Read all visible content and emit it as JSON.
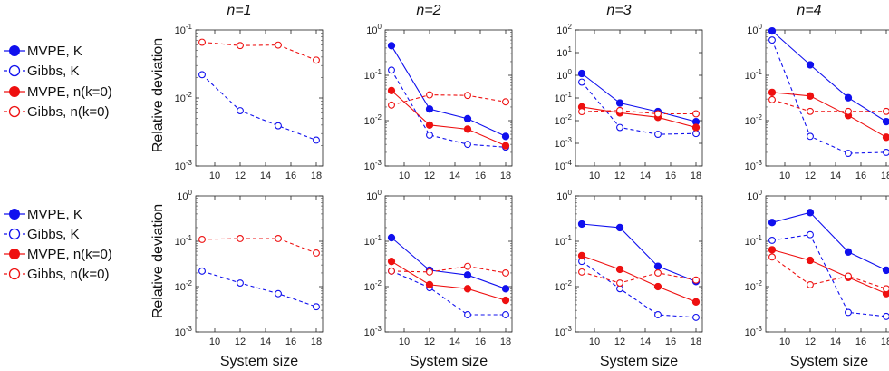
{
  "figure": {
    "column_titles": [
      "n=1",
      "n=2",
      "n=3",
      "n=4"
    ],
    "ylabel": "Relative deviation",
    "xlabel": "System size"
  },
  "legend": {
    "entries": [
      {
        "label": "MVPE, K",
        "color": "#1010ee",
        "filled": true,
        "dashed": false
      },
      {
        "label": "Gibbs, K",
        "color": "#1010ee",
        "filled": false,
        "dashed": true
      },
      {
        "label": "MVPE, n(k=0)",
        "color": "#ee1010",
        "filled": true,
        "dashed": false
      },
      {
        "label": "Gibbs, n(k=0)",
        "color": "#ee1010",
        "filled": false,
        "dashed": true
      }
    ]
  },
  "colors": {
    "blue": "#1010ee",
    "red": "#ee1010"
  },
  "chart_data": [
    {
      "type": "line",
      "row": 0,
      "col": 0,
      "title": "n=1",
      "xlabel": "",
      "ylabel": "Relative deviation",
      "yscale": "log",
      "xlim": [
        8.5,
        18.5
      ],
      "ylim_exp": [
        -3,
        -1
      ],
      "xticks": [
        10,
        12,
        14,
        16,
        18
      ],
      "series": [
        {
          "name": "Gibbs, K",
          "x": [
            9,
            12,
            15,
            18
          ],
          "y": [
            0.022,
            0.0065,
            0.0039,
            0.0024
          ]
        },
        {
          "name": "Gibbs, n(k=0)",
          "x": [
            9,
            12,
            15,
            18
          ],
          "y": [
            0.066,
            0.059,
            0.06,
            0.036
          ]
        }
      ]
    },
    {
      "type": "line",
      "row": 0,
      "col": 1,
      "title": "n=2",
      "xlabel": "",
      "ylabel": "",
      "yscale": "log",
      "xlim": [
        8.5,
        18.5
      ],
      "ylim_exp": [
        -3,
        0
      ],
      "xticks": [
        10,
        12,
        14,
        16,
        18
      ],
      "series": [
        {
          "name": "MVPE, K",
          "x": [
            9,
            12,
            15,
            18
          ],
          "y": [
            0.45,
            0.018,
            0.011,
            0.0045
          ]
        },
        {
          "name": "Gibbs, K",
          "x": [
            9,
            12,
            15,
            18
          ],
          "y": [
            0.13,
            0.0048,
            0.003,
            0.0026
          ]
        },
        {
          "name": "MVPE, n(k=0)",
          "x": [
            9,
            12,
            15,
            18
          ],
          "y": [
            0.046,
            0.008,
            0.0065,
            0.0028
          ]
        },
        {
          "name": "Gibbs, n(k=0)",
          "x": [
            9,
            12,
            15,
            18
          ],
          "y": [
            0.022,
            0.037,
            0.036,
            0.026
          ]
        }
      ]
    },
    {
      "type": "line",
      "row": 0,
      "col": 2,
      "title": "n=3",
      "xlabel": "",
      "ylabel": "",
      "yscale": "log",
      "xlim": [
        8.5,
        18.5
      ],
      "ylim_exp": [
        -4,
        2
      ],
      "xticks": [
        10,
        12,
        14,
        16,
        18
      ],
      "series": [
        {
          "name": "MVPE, K",
          "x": [
            9,
            12,
            15,
            18
          ],
          "y": [
            1.2,
            0.06,
            0.025,
            0.009
          ]
        },
        {
          "name": "Gibbs, K",
          "x": [
            9,
            12,
            15,
            18
          ],
          "y": [
            0.5,
            0.005,
            0.0025,
            0.0027
          ]
        },
        {
          "name": "MVPE, n(k=0)",
          "x": [
            9,
            12,
            15,
            18
          ],
          "y": [
            0.04,
            0.022,
            0.014,
            0.005
          ]
        },
        {
          "name": "Gibbs, n(k=0)",
          "x": [
            9,
            12,
            15,
            18
          ],
          "y": [
            0.025,
            0.028,
            0.02,
            0.02
          ]
        }
      ]
    },
    {
      "type": "line",
      "row": 0,
      "col": 3,
      "title": "n=4",
      "xlabel": "",
      "ylabel": "",
      "yscale": "log",
      "xlim": [
        8.5,
        18.5
      ],
      "ylim_exp": [
        -3,
        0
      ],
      "xticks": [
        10,
        12,
        14,
        16,
        18
      ],
      "series": [
        {
          "name": "MVPE, K",
          "x": [
            9,
            12,
            15,
            18
          ],
          "y": [
            0.95,
            0.17,
            0.032,
            0.0095
          ]
        },
        {
          "name": "Gibbs, K",
          "x": [
            9,
            12,
            15,
            18
          ],
          "y": [
            0.6,
            0.0045,
            0.0019,
            0.002
          ]
        },
        {
          "name": "MVPE, n(k=0)",
          "x": [
            9,
            12,
            15,
            18
          ],
          "y": [
            0.042,
            0.035,
            0.013,
            0.0043
          ]
        },
        {
          "name": "Gibbs, n(k=0)",
          "x": [
            9,
            12,
            15,
            18
          ],
          "y": [
            0.029,
            0.016,
            0.016,
            0.016
          ]
        }
      ]
    },
    {
      "type": "line",
      "row": 1,
      "col": 0,
      "title": "",
      "xlabel": "System size",
      "ylabel": "Relative deviation",
      "yscale": "log",
      "xlim": [
        8.5,
        18.5
      ],
      "ylim_exp": [
        -3,
        0
      ],
      "xticks": [
        10,
        12,
        14,
        16,
        18
      ],
      "series": [
        {
          "name": "Gibbs, K",
          "x": [
            9,
            12,
            15,
            18
          ],
          "y": [
            0.022,
            0.012,
            0.007,
            0.0036
          ]
        },
        {
          "name": "Gibbs, n(k=0)",
          "x": [
            9,
            12,
            15,
            18
          ],
          "y": [
            0.11,
            0.115,
            0.115,
            0.055
          ]
        }
      ]
    },
    {
      "type": "line",
      "row": 1,
      "col": 1,
      "title": "",
      "xlabel": "System size",
      "ylabel": "",
      "yscale": "log",
      "xlim": [
        8.5,
        18.5
      ],
      "ylim_exp": [
        -3,
        0
      ],
      "xticks": [
        10,
        12,
        14,
        16,
        18
      ],
      "series": [
        {
          "name": "MVPE, K",
          "x": [
            9,
            12,
            15,
            18
          ],
          "y": [
            0.12,
            0.023,
            0.018,
            0.009
          ]
        },
        {
          "name": "Gibbs, K",
          "x": [
            9,
            12,
            15,
            18
          ],
          "y": [
            0.022,
            0.0095,
            0.0024,
            0.0024
          ]
        },
        {
          "name": "MVPE, n(k=0)",
          "x": [
            9,
            12,
            15,
            18
          ],
          "y": [
            0.036,
            0.011,
            0.009,
            0.005
          ]
        },
        {
          "name": "Gibbs, n(k=0)",
          "x": [
            9,
            12,
            15,
            18
          ],
          "y": [
            0.022,
            0.021,
            0.028,
            0.02
          ]
        }
      ]
    },
    {
      "type": "line",
      "row": 1,
      "col": 2,
      "title": "",
      "xlabel": "System size",
      "ylabel": "",
      "yscale": "log",
      "xlim": [
        8.5,
        18.5
      ],
      "ylim_exp": [
        -3,
        0
      ],
      "xticks": [
        10,
        12,
        14,
        16,
        18
      ],
      "series": [
        {
          "name": "MVPE, K",
          "x": [
            9,
            12,
            15,
            18
          ],
          "y": [
            0.24,
            0.2,
            0.028,
            0.013
          ]
        },
        {
          "name": "Gibbs, K",
          "x": [
            9,
            12,
            15,
            18
          ],
          "y": [
            0.036,
            0.009,
            0.0024,
            0.0021
          ]
        },
        {
          "name": "MVPE, n(k=0)",
          "x": [
            9,
            12,
            15,
            18
          ],
          "y": [
            0.048,
            0.024,
            0.01,
            0.0046
          ]
        },
        {
          "name": "Gibbs, n(k=0)",
          "x": [
            9,
            12,
            15,
            18
          ],
          "y": [
            0.021,
            0.012,
            0.02,
            0.014
          ]
        }
      ]
    },
    {
      "type": "line",
      "row": 1,
      "col": 3,
      "title": "",
      "xlabel": "System size",
      "ylabel": "",
      "yscale": "log",
      "xlim": [
        8.5,
        18.5
      ],
      "ylim_exp": [
        -3,
        0
      ],
      "xticks": [
        10,
        12,
        14,
        16,
        18
      ],
      "series": [
        {
          "name": "MVPE, K",
          "x": [
            9,
            12,
            15,
            18
          ],
          "y": [
            0.26,
            0.43,
            0.058,
            0.023
          ]
        },
        {
          "name": "Gibbs, K",
          "x": [
            9,
            12,
            15,
            18
          ],
          "y": [
            0.105,
            0.14,
            0.0027,
            0.0022
          ]
        },
        {
          "name": "MVPE, n(k=0)",
          "x": [
            9,
            12,
            15,
            18
          ],
          "y": [
            0.065,
            0.038,
            0.016,
            0.007
          ]
        },
        {
          "name": "Gibbs, n(k=0)",
          "x": [
            9,
            12,
            15,
            18
          ],
          "y": [
            0.045,
            0.011,
            0.017,
            0.009
          ]
        }
      ]
    }
  ]
}
